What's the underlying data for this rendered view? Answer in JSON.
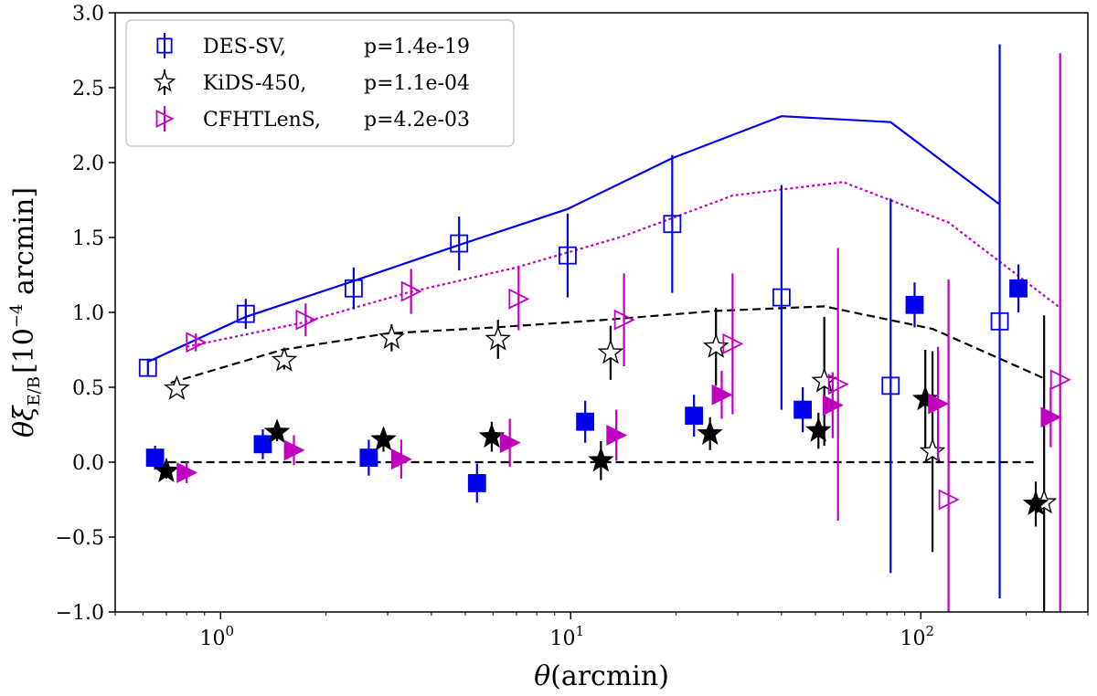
{
  "chart_data": {
    "type": "scatter",
    "xscale": "log",
    "xlim": [
      0.5,
      300
    ],
    "ylim": [
      -1.0,
      3.0
    ],
    "xlabel": "θ(arcmin)",
    "ylabel": {
      "prefix": "θξ",
      "sub": "E/B",
      "bracket_open": "[10",
      "exp": "−4",
      "unit": " arcmin]"
    },
    "x_ticks": [
      {
        "value": 1,
        "base": "10",
        "exp": "0"
      },
      {
        "value": 10,
        "base": "10",
        "exp": "1"
      },
      {
        "value": 100,
        "base": "10",
        "exp": "2"
      }
    ],
    "y_ticks": [
      "−1.0",
      "−0.5",
      "0.0",
      "0.5",
      "1.0",
      "1.5",
      "2.0",
      "2.5",
      "3.0"
    ],
    "legend": {
      "placement": "top-left",
      "entries": [
        {
          "name": "DES-SV,",
          "p": "p=1.4e-19",
          "marker": "square",
          "color": "#0000ee"
        },
        {
          "name": "KiDS-450,",
          "p": "p=1.1e-04",
          "marker": "star",
          "color": "#000000"
        },
        {
          "name": "CFHTLenS,",
          "p": "p=4.2e-03",
          "marker": "triangle-right",
          "color": "#bf00bf"
        }
      ]
    },
    "series": [
      {
        "name": "DES-SV",
        "mode": "E",
        "marker": "square",
        "filled": false,
        "color": "#0000ee",
        "points": [
          [
            0.62,
            0.63,
            0.06
          ],
          [
            1.18,
            0.99,
            0.1
          ],
          [
            2.4,
            1.16,
            0.14
          ],
          [
            4.8,
            1.46,
            0.18
          ],
          [
            9.8,
            1.38,
            0.28
          ],
          [
            19.5,
            1.59,
            0.46
          ],
          [
            40,
            1.1,
            0.75
          ],
          [
            82,
            0.51,
            1.25
          ],
          [
            168,
            0.94,
            1.85
          ]
        ]
      },
      {
        "name": "DES-SV",
        "mode": "B",
        "marker": "square",
        "filled": true,
        "color": "#0000ee",
        "points": [
          [
            0.65,
            0.03,
            0.08
          ],
          [
            1.32,
            0.12,
            0.1
          ],
          [
            2.65,
            0.03,
            0.12
          ],
          [
            5.4,
            -0.14,
            0.13
          ],
          [
            11,
            0.27,
            0.14
          ],
          [
            22.5,
            0.31,
            0.14
          ],
          [
            46,
            0.35,
            0.15
          ],
          [
            96,
            1.05,
            0.15
          ],
          [
            190,
            1.16,
            0.16
          ]
        ]
      },
      {
        "name": "KiDS-450",
        "mode": "E",
        "marker": "star",
        "filled": false,
        "color": "#000000",
        "points": [
          [
            0.75,
            0.49,
            0.04
          ],
          [
            1.52,
            0.68,
            0.06
          ],
          [
            3.08,
            0.83,
            0.09
          ],
          [
            6.2,
            0.82,
            0.13
          ],
          [
            13,
            0.73,
            0.18
          ],
          [
            26,
            0.77,
            0.26
          ],
          [
            53,
            0.54,
            0.43
          ],
          [
            108,
            0.07,
            0.67
          ],
          [
            225,
            -0.27,
            1.25
          ]
        ]
      },
      {
        "name": "KiDS-450",
        "mode": "B",
        "marker": "star",
        "filled": true,
        "color": "#000000",
        "points": [
          [
            0.7,
            -0.06,
            0.05
          ],
          [
            1.45,
            0.2,
            0.06
          ],
          [
            2.92,
            0.15,
            0.08
          ],
          [
            5.95,
            0.17,
            0.1
          ],
          [
            12.2,
            0.01,
            0.13
          ],
          [
            25,
            0.19,
            0.11
          ],
          [
            51,
            0.21,
            0.12
          ],
          [
            103,
            0.42,
            0.33
          ],
          [
            213,
            -0.28,
            0.15
          ]
        ]
      },
      {
        "name": "CFHTLenS",
        "mode": "E",
        "marker": "triangle-right",
        "filled": false,
        "color": "#bf00bf",
        "points": [
          [
            0.85,
            0.8,
            0.06
          ],
          [
            1.75,
            0.95,
            0.11
          ],
          [
            3.5,
            1.14,
            0.15
          ],
          [
            7.1,
            1.09,
            0.21
          ],
          [
            14.2,
            0.95,
            0.31
          ],
          [
            29,
            0.79,
            0.47
          ],
          [
            58,
            0.52,
            0.91
          ],
          [
            120,
            -0.25,
            1.47
          ],
          [
            250,
            0.55,
            2.18
          ]
        ]
      },
      {
        "name": "CFHTLenS",
        "mode": "B",
        "marker": "triangle-right",
        "filled": true,
        "color": "#bf00bf",
        "points": [
          [
            0.8,
            -0.07,
            0.07
          ],
          [
            1.62,
            0.08,
            0.1
          ],
          [
            3.28,
            0.02,
            0.13
          ],
          [
            6.7,
            0.13,
            0.16
          ],
          [
            13.5,
            0.18,
            0.17
          ],
          [
            27,
            0.45,
            0.16
          ],
          [
            56,
            0.38,
            0.22
          ],
          [
            112,
            0.39,
            0.38
          ],
          [
            235,
            0.3,
            0.2
          ]
        ]
      }
    ],
    "lines": [
      {
        "name": "DES-SV model",
        "color": "#0000ee",
        "style": "solid",
        "x": [
          0.62,
          1.18,
          2.4,
          4.8,
          9.8,
          19.5,
          40,
          82,
          168
        ],
        "y": [
          0.67,
          0.97,
          1.21,
          1.45,
          1.69,
          2.03,
          2.31,
          2.27,
          1.72
        ]
      },
      {
        "name": "CFHTLenS model",
        "color": "#bf00bf",
        "style": "dotted",
        "x": [
          0.8,
          1.7,
          3.4,
          7,
          14.2,
          29,
          60,
          120,
          250
        ],
        "y": [
          0.77,
          0.93,
          1.13,
          1.3,
          1.51,
          1.78,
          1.87,
          1.6,
          1.03
        ]
      },
      {
        "name": "KiDS-450 model",
        "color": "#000000",
        "style": "dashed",
        "x": [
          0.72,
          1.5,
          3,
          6.1,
          12.5,
          26,
          53,
          108,
          225
        ],
        "y": [
          0.53,
          0.75,
          0.86,
          0.9,
          0.95,
          1.01,
          1.04,
          0.89,
          0.56
        ]
      },
      {
        "name": "zero line",
        "color": "#000000",
        "style": "dashed",
        "x": [
          0.65,
          215
        ],
        "y": [
          0.0,
          0.0
        ]
      }
    ]
  }
}
